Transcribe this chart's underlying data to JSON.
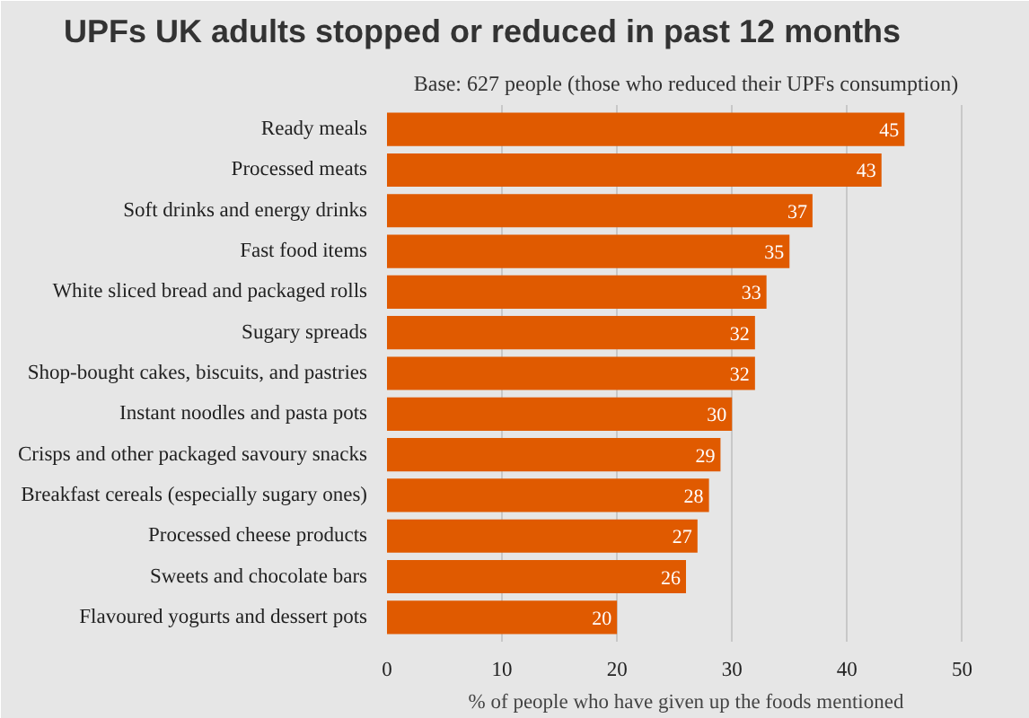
{
  "chart_data": {
    "type": "bar",
    "orientation": "horizontal",
    "title": "UPFs UK adults stopped or reduced in past 12 months",
    "subtitle": "Base: 627 people (those who reduced their UPFs consumption)",
    "xlabel": "% of people who have given up the foods mentioned",
    "categories": [
      "Ready meals",
      "Processed meats",
      "Soft drinks and energy drinks",
      "Fast food items",
      "White sliced bread and packaged rolls",
      "Sugary spreads",
      "Shop-bought cakes, biscuits, and pastries",
      "Instant noodles and pasta pots",
      "Crisps and other packaged savoury snacks",
      "Breakfast cereals (especially sugary ones)",
      "Processed cheese products",
      "Sweets and chocolate bars",
      "Flavoured yogurts and dessert pots"
    ],
    "values": [
      45,
      43,
      37,
      35,
      33,
      32,
      32,
      30,
      29,
      28,
      27,
      26,
      20
    ],
    "color": "#e05a00",
    "xlim": [
      0,
      52
    ],
    "xticks": [
      0,
      10,
      20,
      30,
      40,
      50
    ],
    "grid": "x",
    "data_labels": true
  }
}
